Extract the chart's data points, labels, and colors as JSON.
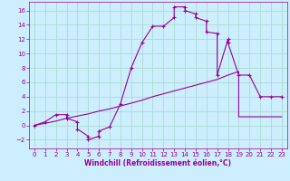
{
  "bg_color": "#cceeff",
  "grid_color": "#aaddcc",
  "line_color": "#990099",
  "xlabel": "Windchill (Refroidissement éolien,°C)",
  "xlim": [
    -0.5,
    23.5
  ],
  "ylim": [
    -3.2,
    17.2
  ],
  "xticks": [
    0,
    1,
    2,
    3,
    4,
    5,
    6,
    7,
    8,
    9,
    10,
    11,
    12,
    13,
    14,
    15,
    16,
    17,
    18,
    19,
    20,
    21,
    22,
    23
  ],
  "yticks": [
    -2,
    0,
    2,
    4,
    6,
    8,
    10,
    12,
    14,
    16
  ],
  "curve1_x": [
    0,
    1,
    2,
    3,
    3,
    4,
    4,
    5,
    5,
    6,
    6,
    7,
    8,
    9,
    10,
    11,
    12,
    13,
    13,
    14,
    14,
    15,
    15,
    16,
    16,
    17,
    17,
    18,
    18,
    19,
    20,
    21,
    22,
    23
  ],
  "curve1_y": [
    0,
    0.5,
    1.5,
    1.5,
    1.0,
    0.5,
    -0.5,
    -1.5,
    -2.0,
    -1.5,
    -0.8,
    -0.2,
    3.0,
    8.0,
    11.5,
    13.8,
    13.8,
    15.0,
    16.5,
    16.5,
    16.0,
    15.5,
    15.0,
    14.5,
    13.0,
    12.8,
    7.0,
    12.0,
    11.5,
    7.0,
    7.0,
    4.0,
    4.0,
    4.0
  ],
  "curve2_x": [
    0,
    1,
    2,
    3,
    4,
    5,
    6,
    7,
    8,
    9,
    10,
    11,
    12,
    13,
    14,
    15,
    16,
    17,
    18,
    19,
    19,
    22,
    23
  ],
  "curve2_y": [
    0,
    0.3,
    0.6,
    1.0,
    1.3,
    1.6,
    2.0,
    2.3,
    2.7,
    3.1,
    3.5,
    4.0,
    4.4,
    4.8,
    5.2,
    5.6,
    6.0,
    6.4,
    7.0,
    7.5,
    1.2,
    1.2,
    1.2
  ]
}
